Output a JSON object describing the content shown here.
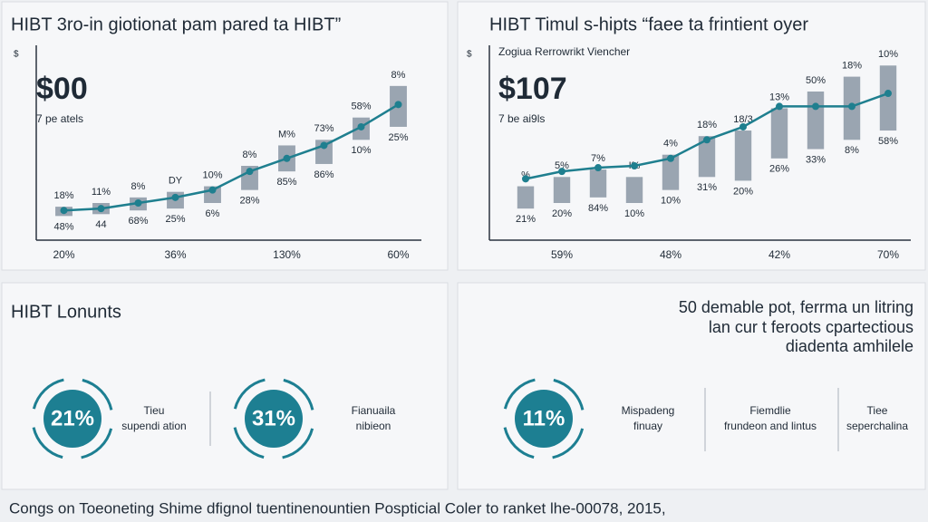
{
  "chart_data": [
    {
      "type": "combo",
      "title": "HIBT 3ro-in giotionat pam pared ta HIBT”",
      "headline": "$00",
      "headline_note": "7 pe atels",
      "y_unit": "$",
      "categories": [
        "20%",
        null,
        null,
        "36%",
        null,
        null,
        "130%",
        null,
        null,
        "60%"
      ],
      "bar_low": [
        13,
        14,
        16,
        17,
        20,
        27,
        37,
        41,
        54,
        61
      ],
      "bar_high": [
        18,
        20,
        23,
        26,
        29,
        40,
        51,
        54,
        66,
        83
      ],
      "line_values": [
        16,
        17,
        20,
        23,
        27,
        37,
        44,
        51,
        61,
        73
      ],
      "top_labels": [
        "18%",
        "11%",
        "8%",
        "DY",
        "10%",
        "8%",
        "M%",
        "73%",
        "58%",
        "8%"
      ],
      "bottom_labels": [
        "48%",
        "44",
        "68%",
        "25%",
        "6%",
        "28%",
        "85%",
        "86%",
        "10%",
        "25%"
      ],
      "bar_color": "#9aa5b1",
      "line_color": "#1f7f8f",
      "ylim": [
        0,
        100
      ]
    },
    {
      "type": "combo",
      "title": "HIBT Timul s-hipts “faee ta frintient oyer",
      "subtitle": "Zogiua Rerrowrikt Viencher",
      "headline": "$107",
      "headline_note": "7 be ai9ls",
      "y_unit": "$",
      "categories": [
        null,
        "59%",
        null,
        null,
        "48%",
        null,
        null,
        "42%",
        null,
        null,
        "70%"
      ],
      "bar_low": [
        17,
        20,
        23,
        20,
        27,
        34,
        32,
        44,
        49,
        54,
        59
      ],
      "bar_high": [
        29,
        34,
        38,
        34,
        46,
        56,
        59,
        71,
        80,
        88,
        94
      ],
      "line_values": [
        33,
        37,
        39,
        40,
        44,
        54,
        61,
        72,
        72,
        72,
        79
      ],
      "top_labels": [
        "%",
        "5%",
        "7%",
        "I%",
        "4%",
        "18%",
        "18/3",
        "13%",
        "50%",
        "18%",
        "10%"
      ],
      "bottom_labels": [
        "21%",
        "20%",
        "84%",
        "10%",
        "10%",
        "31%",
        "20%",
        "26%",
        "33%",
        "8%",
        "58%"
      ],
      "bar_color": "#9aa5b1",
      "line_color": "#1f7f8f",
      "ylim": [
        0,
        100
      ]
    }
  ],
  "panels": {
    "left": {
      "title": "HIBT Lonunts",
      "gauges": [
        {
          "value": "21%",
          "label": [
            "Tieu",
            "supendi ation"
          ]
        },
        {
          "value": "31%",
          "label": [
            "Fianuaila",
            "nibieon"
          ]
        }
      ]
    },
    "right": {
      "lines": [
        "50 demable pot, ferrma un litring",
        "lan cur t feroots cpartectious",
        "diadenta amhilele"
      ],
      "gauges": [
        {
          "value": "11%",
          "label": [
            "Mispadeng",
            "finuay"
          ]
        }
      ],
      "notes": [
        {
          "label": [
            "Fiemdlie",
            "frundeon and lintus"
          ]
        },
        {
          "label": [
            "Tiee",
            "seperchalina"
          ]
        }
      ]
    }
  },
  "footer": "Congs on Toeoneting Shime dfignol tuentinenountien Pospticial Coler to ranket lhe-00078, 2015,"
}
